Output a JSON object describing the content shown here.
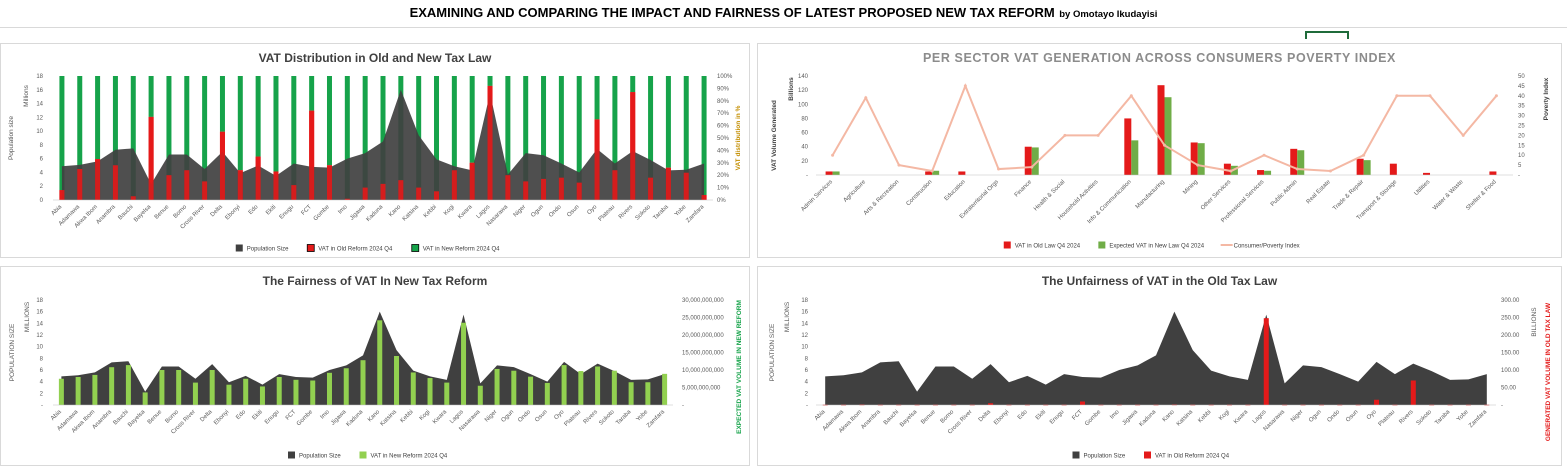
{
  "header": {
    "title": "EXAMINING AND COMPARING THE IMPACT AND FAIRNESS OF LATEST PROPOSED NEW TAX REFORM",
    "author": "by Omotayo Ikudayisi"
  },
  "colors": {
    "population": "#404040",
    "old_vat": "#e41a1a",
    "new_vat_dark": "#16a34a",
    "new_vat_light": "#92d050",
    "green_bar": "#70ad47",
    "poverty_line": "#f4b8a4"
  },
  "chart_data": [
    {
      "id": "vat-distribution",
      "type": "bar",
      "title": "VAT Distribution in Old and New Tax Law",
      "ylabel": "Population size",
      "ylabel_units": "Millions",
      "y2label": "VAT distribution in %",
      "ylim": [
        0,
        18
      ],
      "y_ticks": [
        "18",
        "16",
        "14",
        "12",
        "10",
        "8",
        "6",
        "4",
        "2",
        "0"
      ],
      "y2_ticks": [
        "100%",
        "90%",
        "80%",
        "70%",
        "60%",
        "50%",
        "40%",
        "30%",
        "20%",
        "10%",
        "0%"
      ],
      "categories": [
        "Abia",
        "Adamawa",
        "Akwa Ibom",
        "Anambra",
        "Bauchi",
        "Bayelsa",
        "Benue",
        "Borno",
        "Cross River",
        "Delta",
        "Ebonyi",
        "Edo",
        "Ekiti",
        "Enugu",
        "FCT",
        "Gombe",
        "Imo",
        "Jigawa",
        "Kaduna",
        "Kano",
        "Katsina",
        "Kebbi",
        "Kogi",
        "Kwara",
        "Lagos",
        "Nasarawa",
        "Niger",
        "Ogun",
        "Ondo",
        "Osun",
        "Oyo",
        "Plateau",
        "Rivers",
        "Sokoto",
        "Taraba",
        "Yobe",
        "Zamfara"
      ],
      "population": [
        4.9,
        5.1,
        5.6,
        7.3,
        7.5,
        2.3,
        6.6,
        6.6,
        4.5,
        7.0,
        3.9,
        5.0,
        3.5,
        5.3,
        4.8,
        4.7,
        6.0,
        6.8,
        8.5,
        16.0,
        9.4,
        5.9,
        4.9,
        4.3,
        15.5,
        3.7,
        6.8,
        6.5,
        5.3,
        4.0,
        7.4,
        5.3,
        7.1,
        5.8,
        4.3,
        4.4,
        5.3
      ],
      "old_share": [
        0.08,
        0.25,
        0.33,
        0.28,
        0.03,
        0.67,
        0.2,
        0.24,
        0.15,
        0.55,
        0.24,
        0.35,
        0.23,
        0.12,
        0.72,
        0.28,
        0.01,
        0.1,
        0.13,
        0.16,
        0.1,
        0.07,
        0.24,
        0.3,
        0.92,
        0.2,
        0.15,
        0.17,
        0.18,
        0.14,
        0.65,
        0.24,
        0.87,
        0.18,
        0.26,
        0.22,
        0.04
      ],
      "series_names": [
        "Population Size",
        "VAT in Old Reform 2024 Q4",
        "VAT in New Reform 2024 Q4"
      ]
    },
    {
      "id": "sector-vat",
      "type": "bar",
      "title": "PER SECTOR VAT GENERATION ACROSS CONSUMERS POVERTY INDEX",
      "ylabel": "VAT Volume Generated",
      "ylabel_units": "Billions",
      "y2label": "Poverty Index",
      "ylim": [
        0,
        140
      ],
      "y_ticks": [
        "140",
        "120",
        "100",
        "80",
        "60",
        "40",
        "20",
        "-"
      ],
      "y2lim": [
        0,
        50
      ],
      "y2_ticks": [
        "50",
        "45",
        "40",
        "35",
        "30",
        "25",
        "20",
        "15",
        "10",
        "5",
        "-"
      ],
      "categories": [
        "Admin Services",
        "Agriculture",
        "Arts & Recreation",
        "Construction",
        "Education",
        "Extraterritorial Orgs",
        "Finance",
        "Health & Social",
        "Household Activities",
        "Info & Communication",
        "Manufacturing",
        "Mining",
        "Other Services",
        "Professional Services",
        "Public Admin",
        "Real Estate",
        "Trade & Repair",
        "Transport & Storage",
        "Utilities",
        "Water & Waste",
        "Shelter & Food"
      ],
      "series": [
        {
          "name": "VAT in Old Law Q4 2024",
          "values": [
            5,
            0,
            0,
            5,
            5,
            0,
            40,
            0,
            0,
            80,
            127,
            46,
            16,
            7,
            37,
            0,
            23,
            16,
            3,
            0,
            5
          ]
        },
        {
          "name": "Expected VAT in New Law Q4 2024",
          "values": [
            5,
            0,
            0,
            6,
            0,
            0,
            39,
            0,
            0,
            49,
            110,
            45,
            13,
            6,
            35,
            0,
            21,
            0,
            0,
            0,
            0
          ]
        },
        {
          "name": "Consumer/Poverty Index",
          "values": [
            10,
            39,
            5,
            2,
            45,
            3,
            4,
            20,
            20,
            40,
            15,
            5,
            2,
            10,
            3,
            2,
            10,
            40,
            40,
            20,
            40
          ]
        }
      ]
    },
    {
      "id": "new-fairness",
      "type": "bar",
      "title": "The Fairness of VAT In New Tax Reform",
      "ylabel": "POPULATION SIZE",
      "ylabel_units": "MILLIONS",
      "y2label": "EXPECTED VAT VOLUME IN NEW REFORM",
      "ylim": [
        0,
        18
      ],
      "y_ticks": [
        "18",
        "16",
        "14",
        "12",
        "10",
        "8",
        "6",
        "4",
        "2",
        "-"
      ],
      "y2lim": [
        0,
        30000000000
      ],
      "y2_ticks": [
        "30,000,000,000",
        "25,000,000,000",
        "20,000,000,000",
        "15,000,000,000",
        "10,000,000,000",
        "5,000,000,000",
        "-"
      ],
      "categories": [
        "Abia",
        "Adamawa",
        "Akwa Ibom",
        "Anambra",
        "Bauchi",
        "Bayelsa",
        "Benue",
        "Borno",
        "Cross River",
        "Delta",
        "Ebonyi",
        "Edo",
        "Ekiti",
        "Enugu",
        "FCT",
        "Gombe",
        "Imo",
        "Jigawa",
        "Kaduna",
        "Kano",
        "Katsina",
        "Kebbi",
        "Kogi",
        "Kwara",
        "Lagos",
        "Nasarawa",
        "Niger",
        "Ogun",
        "Ondo",
        "Osun",
        "Oyo",
        "Plateau",
        "Rivers",
        "Sokoto",
        "Taraba",
        "Yobe",
        "Zamfara"
      ],
      "population": [
        4.9,
        5.1,
        5.6,
        7.3,
        7.5,
        2.3,
        6.6,
        6.6,
        4.5,
        7.0,
        3.9,
        5.0,
        3.5,
        5.3,
        4.8,
        4.7,
        6.0,
        6.8,
        8.5,
        16.0,
        9.4,
        5.9,
        4.9,
        4.3,
        15.5,
        3.7,
        6.8,
        6.5,
        5.3,
        4.0,
        7.4,
        5.3,
        7.1,
        5.8,
        4.3,
        4.4,
        5.3
      ],
      "new_vat": [
        7500000000,
        8000000000,
        8600000000,
        10800000000,
        11400000000,
        3600000000,
        10000000000,
        10000000000,
        6400000000,
        10000000000,
        5800000000,
        7500000000,
        5300000000,
        8000000000,
        7200000000,
        7000000000,
        9200000000,
        10500000000,
        12800000000,
        24200000000,
        14000000000,
        9300000000,
        7700000000,
        6400000000,
        23500000000,
        5500000000,
        10300000000,
        9800000000,
        8100000000,
        6300000000,
        11400000000,
        9700000000,
        11000000000,
        9800000000,
        6500000000,
        6500000000,
        8900000000
      ],
      "series_names": [
        "Population Size",
        "VAT in New Reform 2024 Q4"
      ]
    },
    {
      "id": "old-unfairness",
      "type": "bar",
      "title": "The Unfairness of VAT in the Old Tax Law",
      "ylabel": "POPULATION SIZE",
      "ylabel_units": "MILLIONS",
      "y2label": "GENERATED VAT VOLUME IN OLD TAX LAW",
      "y2label_units": "BILLIONS",
      "ylim": [
        0,
        18
      ],
      "y_ticks": [
        "18",
        "16",
        "14",
        "12",
        "10",
        "8",
        "6",
        "4",
        "2",
        "-"
      ],
      "y2lim": [
        0,
        300
      ],
      "y2_ticks": [
        "300.00",
        "250.00",
        "200.00",
        "150.00",
        "100.00",
        "50.00",
        "-"
      ],
      "categories": [
        "Abia",
        "Adamawa",
        "Akwa Ibom",
        "Anambra",
        "Bauchi",
        "Bayelsa",
        "Benue",
        "Borno",
        "Cross River",
        "Delta",
        "Ebonyi",
        "Edo",
        "Ekiti",
        "Enugu",
        "FCT",
        "Gombe",
        "Imo",
        "Jigawa",
        "Kaduna",
        "Kano",
        "Katsina",
        "Kebbi",
        "Kogi",
        "Kwara",
        "Lagos",
        "Nasarawa",
        "Niger",
        "Ogun",
        "Ondo",
        "Osun",
        "Oyo",
        "Plateau",
        "Rivers",
        "Sokoto",
        "Taraba",
        "Yobe",
        "Zamfara"
      ],
      "population": [
        4.9,
        5.1,
        5.6,
        7.3,
        7.5,
        2.3,
        6.6,
        6.6,
        4.5,
        7.0,
        3.9,
        5.0,
        3.5,
        5.3,
        4.8,
        4.7,
        6.0,
        6.8,
        8.5,
        16.0,
        9.4,
        5.9,
        4.9,
        4.3,
        15.5,
        3.7,
        6.8,
        6.5,
        5.3,
        4.0,
        7.4,
        5.3,
        7.1,
        5.8,
        4.3,
        4.4,
        5.3
      ],
      "old_vat": [
        1,
        1,
        1.5,
        1,
        1,
        1,
        1,
        1,
        1,
        5,
        1,
        1,
        1,
        1,
        10,
        1,
        1,
        1,
        1,
        1.5,
        1,
        1,
        1,
        1,
        248,
        1,
        1,
        1,
        1,
        1,
        15,
        1,
        70,
        1,
        1,
        1,
        1
      ],
      "series_names": [
        "Population Size",
        "VAT in Old Reform 2024 Q4"
      ]
    }
  ]
}
